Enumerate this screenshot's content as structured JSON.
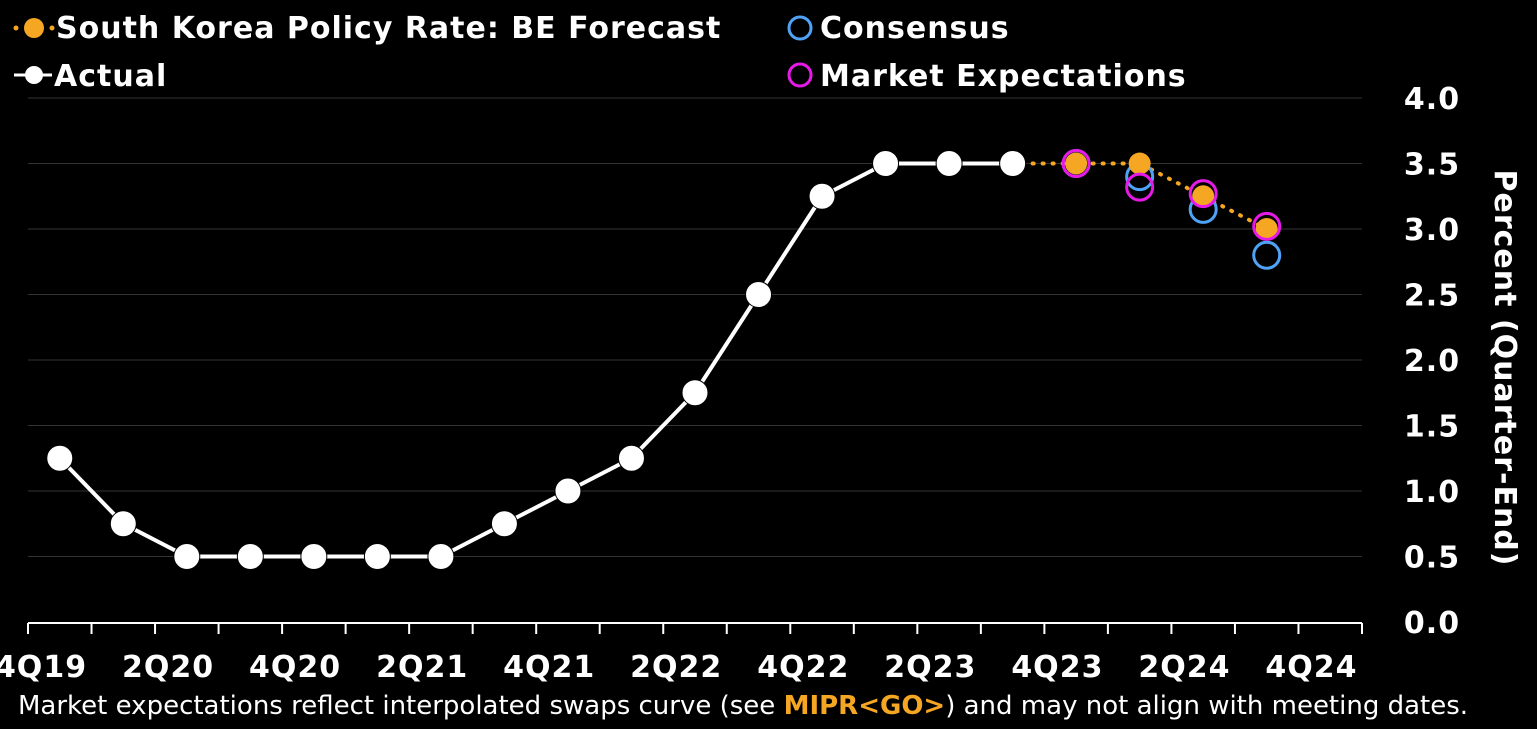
{
  "chart_data": {
    "type": "line",
    "title": "South Korea Policy Rate",
    "ylabel": "Percent (Quarter-End)",
    "ylim": [
      0,
      4.0
    ],
    "yticks": [
      "0.0",
      "0.5",
      "1.0",
      "1.5",
      "2.0",
      "2.5",
      "3.0",
      "3.5",
      "4.0"
    ],
    "x": [
      "4Q19",
      "1Q20",
      "2Q20",
      "3Q20",
      "4Q20",
      "1Q21",
      "2Q21",
      "3Q21",
      "4Q21",
      "1Q22",
      "2Q22",
      "3Q22",
      "4Q22",
      "1Q23",
      "2Q23",
      "3Q23",
      "4Q23",
      "1Q24",
      "2Q24",
      "3Q24",
      "4Q24"
    ],
    "xtick_labels": [
      "4Q19",
      "2Q20",
      "4Q20",
      "2Q21",
      "4Q21",
      "2Q22",
      "4Q22",
      "2Q23",
      "4Q23",
      "2Q24",
      "4Q24"
    ],
    "series": [
      {
        "name": "Actual",
        "color": "#ffffff",
        "style": "solid-line-filled-markers",
        "x": [
          "4Q19",
          "1Q20",
          "2Q20",
          "3Q20",
          "4Q20",
          "1Q21",
          "2Q21",
          "3Q21",
          "4Q21",
          "1Q22",
          "2Q22",
          "3Q22",
          "4Q22",
          "1Q23",
          "2Q23",
          "3Q23"
        ],
        "values": [
          1.25,
          0.75,
          0.5,
          0.5,
          0.5,
          0.5,
          0.5,
          0.75,
          1.0,
          1.25,
          1.75,
          2.5,
          3.25,
          3.5,
          3.5,
          3.5
        ]
      },
      {
        "name": "South Korea Policy Rate: BE Forecast",
        "color": "#f5a623",
        "style": "dotted-line-filled-markers",
        "x": [
          "3Q23",
          "4Q23",
          "1Q24",
          "2Q24",
          "3Q24"
        ],
        "values": [
          3.5,
          3.5,
          3.5,
          3.25,
          3.0
        ]
      },
      {
        "name": "Consensus",
        "color": "#4fa3f7",
        "style": "open-markers",
        "x": [
          "4Q23",
          "1Q24",
          "2Q24",
          "3Q24"
        ],
        "values": [
          3.5,
          3.4,
          3.15,
          2.8
        ]
      },
      {
        "name": "Market Expectations",
        "color": "#e619e6",
        "style": "open-markers",
        "x": [
          "4Q23",
          "1Q24",
          "2Q24",
          "3Q24"
        ],
        "values": [
          3.5,
          3.32,
          3.27,
          3.02
        ]
      }
    ],
    "legend": [
      "South Korea Policy Rate: BE Forecast",
      "Consensus",
      "Actual",
      "Market Expectations"
    ],
    "legend_position": "top-left",
    "grid": true
  },
  "footnote": {
    "before": "Market expectations reflect interpolated swaps curve (see ",
    "command": "MIPR<GO>",
    "after": ") and may not align with meeting dates."
  }
}
